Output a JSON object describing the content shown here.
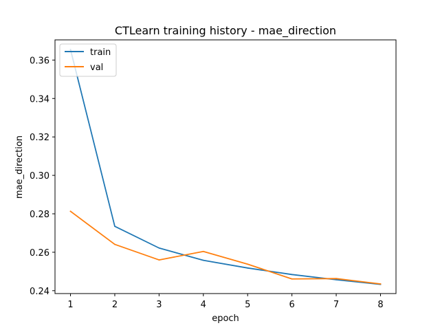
{
  "chart_data": {
    "type": "line",
    "title": "CTLearn training history - mae_direction",
    "xlabel": "epoch",
    "ylabel": "mae_direction",
    "x": [
      1,
      2,
      3,
      4,
      5,
      6,
      7,
      8
    ],
    "xticks": [
      "1",
      "2",
      "3",
      "4",
      "5",
      "6",
      "7",
      "8"
    ],
    "yticks": [
      "0.24",
      "0.26",
      "0.28",
      "0.30",
      "0.32",
      "0.34",
      "0.36"
    ],
    "xlim": [
      0.65,
      8.35
    ],
    "ylim": [
      0.2385,
      0.3705
    ],
    "grid": false,
    "legend_position": "upper-left",
    "series": [
      {
        "name": "train",
        "color": "#1f77b4",
        "values": [
          0.3655,
          0.2735,
          0.2622,
          0.2558,
          0.2518,
          0.2484,
          0.2457,
          0.2433
        ]
      },
      {
        "name": "val",
        "color": "#ff7f0e",
        "values": [
          0.2813,
          0.2641,
          0.256,
          0.2604,
          0.2538,
          0.2461,
          0.2463,
          0.2435
        ]
      }
    ]
  }
}
